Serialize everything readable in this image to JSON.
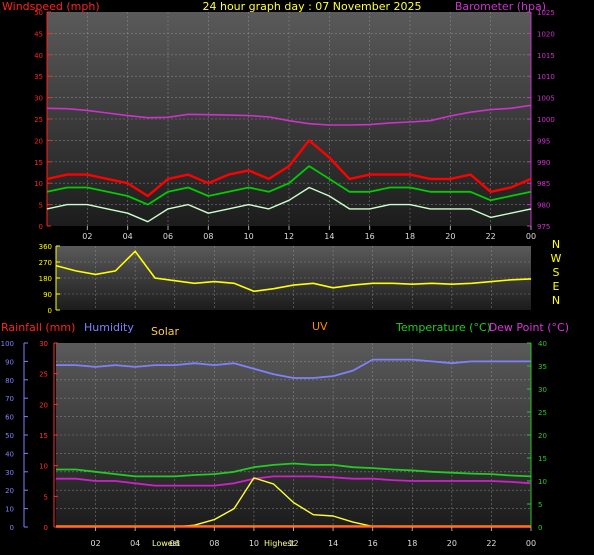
{
  "title": "24 hour graph day : 07 November 2025",
  "hour_ticks": [
    "02",
    "04",
    "06",
    "08",
    "10",
    "12",
    "14",
    "16",
    "18",
    "20",
    "22",
    "00"
  ],
  "colors": {
    "background": "#000000",
    "panel_top": "#5a5a5a",
    "panel_bottom": "#1c1c1c",
    "grid": "#9a9a9a",
    "wind_avg": "#ff0000",
    "wind_mean": "#00cc00",
    "wind_gust": "#ccffcc",
    "barometer": "#cc33cc",
    "wind_dir": "#ffff00",
    "humidity": "#8080ff",
    "rain": "#ff3333",
    "solar": "#ffff33",
    "uv": "#ff8800",
    "temperature": "#22cc22",
    "dewpoint": "#cc22cc",
    "compass": "#ffff00"
  },
  "chart_data": [
    {
      "type": "line",
      "panel": "wind-barometer",
      "left_axis_label": "Windspeed (mph)",
      "right_axis_label": "Barometer (hpa)",
      "left_ticks": [
        0,
        5,
        10,
        15,
        20,
        25,
        30,
        35,
        40,
        45,
        50
      ],
      "right_ticks": [
        975,
        980,
        985,
        990,
        995,
        1000,
        1005,
        1010,
        1015,
        1020,
        1025
      ],
      "x_hours": [
        0,
        1,
        2,
        3,
        4,
        5,
        6,
        7,
        8,
        9,
        10,
        11,
        12,
        13,
        14,
        15,
        16,
        17,
        18,
        19,
        20,
        21,
        22,
        23,
        24
      ],
      "series": [
        {
          "key": "wind_avg",
          "values": [
            11,
            12,
            12,
            11,
            10,
            7,
            11,
            12,
            10,
            12,
            13,
            11,
            14,
            20,
            16,
            11,
            12,
            12,
            12,
            11,
            11,
            12,
            8,
            9,
            11
          ]
        },
        {
          "key": "wind_mean",
          "values": [
            8,
            9,
            9,
            8,
            7,
            5,
            8,
            9,
            7,
            8,
            9,
            8,
            10,
            14,
            11,
            8,
            8,
            9,
            9,
            8,
            8,
            8,
            6,
            7,
            8
          ]
        },
        {
          "key": "wind_gust",
          "values": [
            4,
            5,
            5,
            4,
            3,
            1,
            4,
            5,
            3,
            4,
            5,
            4,
            6,
            9,
            7,
            4,
            4,
            5,
            5,
            4,
            4,
            4,
            2,
            3,
            4
          ]
        },
        {
          "key": "barometer",
          "values": [
            1002.5,
            1002.4,
            1002.0,
            1001.4,
            1000.8,
            1000.3,
            1000.4,
            1001.1,
            1001.0,
            1000.9,
            1000.8,
            1000.5,
            999.6,
            998.9,
            998.6,
            998.6,
            998.7,
            999.1,
            999.3,
            999.6,
            1000.7,
            1001.6,
            1002.2,
            1002.5,
            1003.2
          ]
        }
      ]
    },
    {
      "type": "line",
      "panel": "wind-direction",
      "compass_labels": [
        "N",
        "W",
        "S",
        "E",
        "N"
      ],
      "left_ticks": [
        0,
        90,
        180,
        270,
        360
      ],
      "x_hours": [
        0,
        1,
        2,
        3,
        4,
        5,
        6,
        7,
        8,
        9,
        10,
        11,
        12,
        13,
        14,
        15,
        16,
        17,
        18,
        19,
        20,
        21,
        22,
        23,
        24
      ],
      "series": [
        {
          "key": "wind_dir",
          "values": [
            250,
            220,
            200,
            220,
            330,
            180,
            165,
            150,
            160,
            150,
            105,
            120,
            140,
            150,
            125,
            140,
            150,
            150,
            145,
            150,
            145,
            150,
            160,
            170,
            175
          ]
        }
      ]
    },
    {
      "type": "line",
      "panel": "rain-temperature",
      "rainfall_label": "Rainfall (mm)",
      "humidity_label": "Humidity",
      "solar_label": "Solar",
      "uv_label": "UV",
      "temperature_label": "Temperature (°C)",
      "dewpoint_label": "Dew Point (°C)",
      "lowest_label": "Lowest",
      "highest_label": "Highest",
      "humidity_ticks": [
        0,
        10,
        20,
        30,
        40,
        50,
        60,
        70,
        80,
        90,
        100
      ],
      "rain_ticks": [
        0,
        5,
        10,
        15,
        20,
        25,
        30
      ],
      "temp_ticks": [
        0,
        5,
        10,
        15,
        20,
        25,
        30,
        35,
        40
      ],
      "x_hours": [
        0,
        1,
        2,
        3,
        4,
        5,
        6,
        7,
        8,
        9,
        10,
        11,
        12,
        13,
        14,
        15,
        16,
        17,
        18,
        19,
        20,
        21,
        22,
        23,
        24
      ],
      "series": [
        {
          "key": "humidity",
          "values": [
            88,
            88,
            87,
            88,
            87,
            88,
            88,
            89,
            88,
            89,
            86,
            83,
            81,
            81,
            82,
            85,
            91,
            91,
            91,
            90,
            89,
            90,
            90,
            90,
            90
          ]
        },
        {
          "key": "temperature",
          "values": [
            12.5,
            12.5,
            12,
            11.5,
            11,
            11,
            11,
            11.3,
            11.5,
            12,
            13,
            13.5,
            13.8,
            13.5,
            13.5,
            13,
            12.8,
            12.5,
            12.3,
            12,
            11.8,
            11.6,
            11.5,
            11.2,
            11
          ]
        },
        {
          "key": "dewpoint",
          "values": [
            10.5,
            10.5,
            10,
            10,
            9.5,
            9,
            9,
            9,
            9,
            9.5,
            10.5,
            11,
            11,
            11,
            10.8,
            10.5,
            10.5,
            10.2,
            10,
            10,
            10,
            10,
            10,
            9.8,
            9.5
          ]
        },
        {
          "key": "solar",
          "values": [
            0,
            0,
            0,
            0,
            0,
            0,
            0,
            0.3,
            1.2,
            3,
            8,
            7,
            4,
            2,
            1.8,
            0.8,
            0.1,
            0,
            0,
            0,
            0,
            0,
            0,
            0,
            0
          ]
        },
        {
          "key": "rain",
          "values": [
            0,
            0,
            0,
            0,
            0,
            0,
            0,
            0,
            0,
            0,
            0,
            0,
            0,
            0,
            0,
            0,
            0,
            0,
            0,
            0,
            0,
            0,
            0,
            0,
            0
          ]
        }
      ]
    }
  ]
}
